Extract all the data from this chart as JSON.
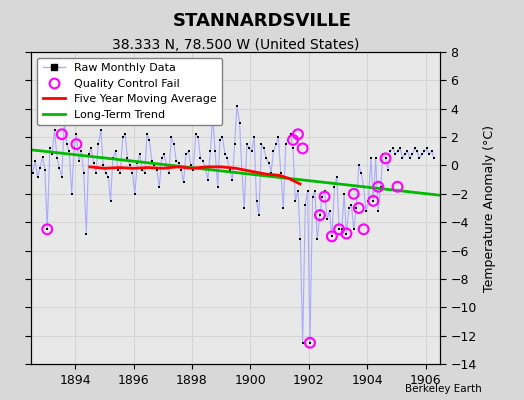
{
  "title": "STANNARDSVILLE",
  "subtitle": "38.333 N, 78.500 W (United States)",
  "ylabel": "Temperature Anomaly (°C)",
  "watermark": "Berkeley Earth",
  "xlim": [
    1892.5,
    1906.5
  ],
  "ylim": [
    -14,
    8
  ],
  "yticks": [
    -14,
    -12,
    -10,
    -8,
    -6,
    -4,
    -2,
    0,
    2,
    4,
    6,
    8
  ],
  "xticks": [
    1894,
    1896,
    1898,
    1900,
    1902,
    1904,
    1906
  ],
  "bg_color": "#e8e8e8",
  "fig_bg_color": "#d8d8d8",
  "raw_x": [
    1892.54,
    1892.63,
    1892.71,
    1892.79,
    1892.88,
    1892.96,
    1893.04,
    1893.13,
    1893.21,
    1893.29,
    1893.38,
    1893.46,
    1893.54,
    1893.63,
    1893.71,
    1893.79,
    1893.88,
    1893.96,
    1894.04,
    1894.13,
    1894.21,
    1894.29,
    1894.38,
    1894.46,
    1894.54,
    1894.63,
    1894.71,
    1894.79,
    1894.88,
    1894.96,
    1895.04,
    1895.13,
    1895.21,
    1895.29,
    1895.38,
    1895.46,
    1895.54,
    1895.63,
    1895.71,
    1895.79,
    1895.88,
    1895.96,
    1896.04,
    1896.13,
    1896.21,
    1896.29,
    1896.38,
    1896.46,
    1896.54,
    1896.63,
    1896.71,
    1896.79,
    1896.88,
    1896.96,
    1897.04,
    1897.13,
    1897.21,
    1897.29,
    1897.38,
    1897.46,
    1897.54,
    1897.63,
    1897.71,
    1897.79,
    1897.88,
    1897.96,
    1898.04,
    1898.13,
    1898.21,
    1898.29,
    1898.38,
    1898.46,
    1898.54,
    1898.63,
    1898.71,
    1898.79,
    1898.88,
    1898.96,
    1899.04,
    1899.13,
    1899.21,
    1899.29,
    1899.38,
    1899.46,
    1899.54,
    1899.63,
    1899.71,
    1899.79,
    1899.88,
    1899.96,
    1900.04,
    1900.13,
    1900.21,
    1900.29,
    1900.38,
    1900.46,
    1900.54,
    1900.63,
    1900.71,
    1900.79,
    1900.88,
    1900.96,
    1901.04,
    1901.13,
    1901.21,
    1901.29,
    1901.38,
    1901.46,
    1901.54,
    1901.63,
    1901.71,
    1901.79,
    1901.88,
    1901.96,
    1902.04,
    1902.13,
    1902.21,
    1902.29,
    1902.38,
    1902.46,
    1902.54,
    1902.63,
    1902.71,
    1902.79,
    1902.88,
    1902.96,
    1903.04,
    1903.13,
    1903.21,
    1903.29,
    1903.38,
    1903.46,
    1903.54,
    1903.63,
    1903.71,
    1903.79,
    1903.88,
    1903.96,
    1904.04,
    1904.13,
    1904.21,
    1904.29,
    1904.38,
    1904.46,
    1904.54,
    1904.63,
    1904.71,
    1904.79,
    1904.88,
    1904.96,
    1905.04,
    1905.13,
    1905.21,
    1905.29,
    1905.38,
    1905.46,
    1905.54,
    1905.63,
    1905.71,
    1905.79,
    1905.88,
    1905.96,
    1906.04,
    1906.13,
    1906.21,
    1906.29
  ],
  "raw_y": [
    -0.5,
    0.3,
    -0.8,
    -0.2,
    0.6,
    -0.3,
    -4.5,
    1.2,
    0.8,
    2.5,
    0.5,
    -0.2,
    -0.8,
    3.2,
    1.5,
    1.0,
    -2.0,
    1.2,
    2.2,
    0.3,
    1.0,
    -0.5,
    -4.8,
    0.8,
    1.2,
    0.2,
    -0.5,
    1.5,
    2.5,
    0.0,
    -0.5,
    -0.8,
    -2.5,
    0.5,
    1.0,
    -0.3,
    -0.5,
    2.0,
    2.2,
    0.5,
    0.0,
    -0.5,
    -2.0,
    0.2,
    0.8,
    -0.3,
    -0.5,
    2.2,
    1.8,
    0.3,
    0.0,
    -0.3,
    -1.5,
    0.5,
    0.8,
    0.0,
    -0.5,
    2.0,
    1.5,
    0.3,
    0.2,
    -0.3,
    -1.2,
    0.8,
    1.0,
    0.0,
    -0.3,
    2.2,
    2.0,
    0.5,
    0.3,
    -0.2,
    -1.0,
    1.0,
    3.5,
    1.0,
    -1.5,
    1.8,
    2.0,
    0.8,
    0.5,
    -0.3,
    -1.0,
    1.5,
    4.2,
    3.0,
    -0.5,
    -3.0,
    1.5,
    1.2,
    1.0,
    2.0,
    -2.5,
    -3.5,
    1.5,
    1.2,
    0.5,
    0.2,
    -0.5,
    1.0,
    1.5,
    2.0,
    -0.5,
    -3.0,
    1.5,
    1.8,
    2.2,
    1.2,
    -2.5,
    -1.8,
    -5.2,
    -12.5,
    -2.8,
    -1.8,
    -12.5,
    -2.2,
    -1.8,
    -5.2,
    -3.5,
    -2.2,
    -1.8,
    -3.8,
    -3.2,
    -5.0,
    -1.5,
    -0.8,
    -4.5,
    -4.5,
    -2.0,
    -4.8,
    -3.0,
    -2.8,
    -4.5,
    -3.0,
    0.0,
    -0.5,
    -1.5,
    -3.2,
    -2.5,
    0.5,
    -2.5,
    0.5,
    -3.2,
    -1.5,
    0.8,
    0.5,
    -0.3,
    1.0,
    1.2,
    0.8,
    1.0,
    1.2,
    0.5,
    0.8,
    1.0,
    0.5,
    0.8,
    1.2,
    1.0,
    0.5,
    0.8,
    1.0,
    1.2,
    0.8,
    1.0,
    0.5
  ],
  "qc_x": [
    1893.04,
    1893.54,
    1894.04,
    1901.46,
    1901.63,
    1901.79,
    1902.04,
    1902.38,
    1902.54,
    1902.79,
    1903.04,
    1903.29,
    1903.54,
    1903.71,
    1903.88,
    1904.21,
    1904.38,
    1904.63,
    1905.04
  ],
  "qc_y": [
    -4.5,
    2.2,
    1.5,
    1.8,
    2.2,
    1.2,
    -12.5,
    -3.5,
    -2.2,
    -5.0,
    -4.5,
    -4.8,
    -2.0,
    -3.0,
    -4.5,
    -2.5,
    -1.5,
    0.5,
    -1.5
  ],
  "ma_x": [
    1894.5,
    1895.0,
    1895.5,
    1896.0,
    1896.5,
    1897.0,
    1897.5,
    1898.0,
    1898.5,
    1899.0,
    1899.5,
    1900.0,
    1900.5,
    1901.0,
    1901.3,
    1901.5,
    1901.7
  ],
  "ma_y": [
    -0.1,
    -0.2,
    -0.15,
    -0.2,
    -0.15,
    -0.2,
    -0.1,
    -0.2,
    -0.1,
    -0.1,
    -0.2,
    -0.4,
    -0.6,
    -0.7,
    -0.9,
    -1.1,
    -1.3
  ],
  "trend_x": [
    1892.5,
    1906.5
  ],
  "trend_y": [
    1.1,
    -2.1
  ],
  "raw_line_color": "#aaaaff",
  "dot_color": "#000080",
  "ma_color": "#ff0000",
  "trend_color": "#00bb00",
  "qc_color": "#ff00ff",
  "grid_color": "#cccccc",
  "title_fontsize": 13,
  "subtitle_fontsize": 10,
  "ylabel_fontsize": 9,
  "tick_fontsize": 9,
  "legend_fontsize": 8
}
